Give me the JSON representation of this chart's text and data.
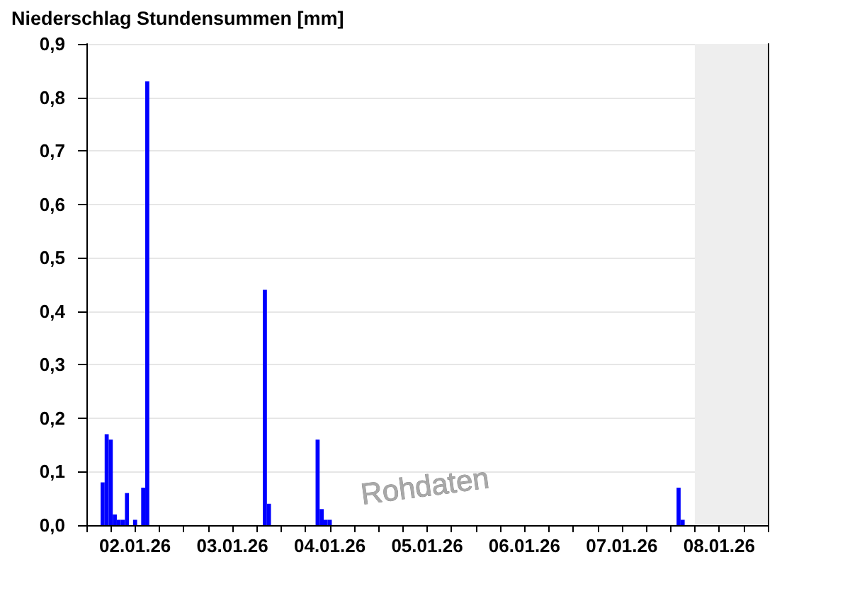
{
  "chart_data": {
    "type": "bar",
    "title": "Niederschlag Stundensummen [mm]",
    "x": [
      "--01-02T04:00",
      "--01-02T05:00",
      "--01-02T06:00",
      "--01-02T07:00",
      "--01-02T08:00",
      "--01-02T09:00",
      "--01-02T10:00",
      "--01-02T12:00",
      "--01-02T14:00",
      "--01-02T15:00",
      "--01-03T20:00",
      "--01-03T21:00",
      "--01-04T09:00",
      "--01-04T10:00",
      "--01-04T11:00",
      "--01-04T12:00",
      "--01-08T02:00",
      "--01-08T03:00"
    ],
    "values": [
      0.08,
      0.17,
      0.16,
      0.02,
      0.01,
      0.01,
      0.06,
      0.01,
      0.07,
      0.83,
      0.44,
      0.04,
      0.16,
      0.03,
      0.01,
      0.01,
      0.07,
      0.01
    ],
    "color": "#0000ff",
    "xlim": [
      "--01-02T00:00",
      "--01-09T00:00"
    ],
    "xticks": [
      {
        "value": "--01-02T00:00",
        "label": null
      },
      {
        "value": "--01-02T06:00",
        "label": null
      },
      {
        "value": "--01-02T12:00",
        "label": "02.01.26"
      },
      {
        "value": "--01-02T18:00",
        "label": null
      },
      {
        "value": "--01-03T00:00",
        "label": null
      },
      {
        "value": "--01-03T06:00",
        "label": null
      },
      {
        "value": "--01-03T12:00",
        "label": "03.01.26"
      },
      {
        "value": "--01-03T18:00",
        "label": null
      },
      {
        "value": "--01-04T00:00",
        "label": null
      },
      {
        "value": "--01-04T06:00",
        "label": null
      },
      {
        "value": "--01-04T12:00",
        "label": "04.01.26"
      },
      {
        "value": "--01-04T18:00",
        "label": null
      },
      {
        "value": "--01-05T00:00",
        "label": null
      },
      {
        "value": "--01-05T06:00",
        "label": null
      },
      {
        "value": "--01-05T12:00",
        "label": "05.01.26"
      },
      {
        "value": "--01-05T18:00",
        "label": null
      },
      {
        "value": "--01-06T00:00",
        "label": null
      },
      {
        "value": "--01-06T06:00",
        "label": null
      },
      {
        "value": "--01-06T12:00",
        "label": "06.01.26"
      },
      {
        "value": "--01-06T18:00",
        "label": null
      },
      {
        "value": "--01-07T00:00",
        "label": null
      },
      {
        "value": "--01-07T06:00",
        "label": null
      },
      {
        "value": "--01-07T12:00",
        "label": "07.01.26"
      },
      {
        "value": "--01-07T18:00",
        "label": null
      },
      {
        "value": "--01-08T00:00",
        "label": null
      },
      {
        "value": "--01-08T06:00",
        "label": null
      },
      {
        "value": "--01-08T12:00",
        "label": "08.01.26"
      },
      {
        "value": "--01-08T18:00",
        "label": null
      },
      {
        "value": "--01-09T00:00",
        "label": null
      }
    ],
    "ylim": [
      0,
      0.9
    ],
    "yticks": [
      {
        "value": 0,
        "label": "0,0"
      },
      {
        "value": 0.1,
        "label": "0,1"
      },
      {
        "value": 0.2,
        "label": "0,2"
      },
      {
        "value": 0.3,
        "label": "0,3"
      },
      {
        "value": 0.4,
        "label": "0,4"
      },
      {
        "value": 0.5,
        "label": "0,5"
      },
      {
        "value": 0.6,
        "label": "0,6"
      },
      {
        "value": 0.7,
        "label": "0,7"
      },
      {
        "value": 0.8,
        "label": "0,8"
      },
      {
        "value": 0.9,
        "label": "0,9"
      }
    ],
    "grid": "y",
    "bands": [
      {
        "axis": "x",
        "from": "--01-08T06:00",
        "to": "--01-09T00:00",
        "color": "#eeeeee"
      }
    ],
    "annotations": [
      "Rohdaten"
    ]
  }
}
